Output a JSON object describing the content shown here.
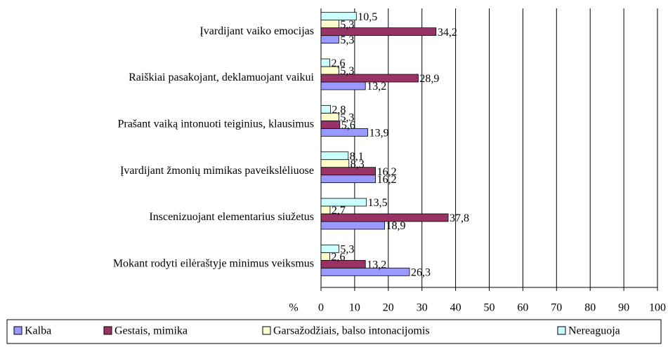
{
  "chart_data": {
    "type": "bar",
    "categories": [
      "Įvardijant vaiko emocijas",
      "Raiškiai pasakojant, deklamuojant vaikui",
      "Prašant vaiką  intonuoti teiginius, klausimus",
      "Įvardijant žmonių mimikas paveikslėliuose",
      "Inscenizuojant elementarius siužetus",
      "Mokant rodyti eilėraštyje minimus veiksmus"
    ],
    "series": [
      {
        "name": "Kalba",
        "color": "#9999ff",
        "values": [
          5.3,
          13.2,
          13.9,
          16.2,
          18.9,
          26.3
        ],
        "value_labels": [
          "5,3",
          "13,2",
          "13,9",
          "16,2",
          "18,9",
          "26,3"
        ]
      },
      {
        "name": "Gestais, mimika",
        "color": "#993366",
        "values": [
          34.2,
          28.9,
          5.6,
          16.2,
          37.8,
          13.2
        ],
        "value_labels": [
          "34,2",
          "28,9",
          "5,6",
          "16,2",
          "37,8",
          "13,2"
        ]
      },
      {
        "name": "Garsažodžiais, balso intonacijomis",
        "color": "#ffffcc",
        "values": [
          5.3,
          5.3,
          5.3,
          8.3,
          2.7,
          2.6
        ],
        "value_labels": [
          "5,3",
          "5,3",
          "5,3",
          "8,3",
          "2,7",
          "2,6"
        ]
      },
      {
        "name": "Nereaguoja",
        "color": "#ccffff",
        "values": [
          10.5,
          2.6,
          2.8,
          8.1,
          13.5,
          5.3
        ],
        "value_labels": [
          "10,5",
          "2,6",
          "2,8",
          "8,1",
          "13,5",
          "5,3"
        ]
      }
    ],
    "xlabel": "%",
    "xlim": [
      0,
      100
    ],
    "xticks": [
      0,
      10,
      20,
      30,
      40,
      50,
      60,
      70,
      80,
      90,
      100
    ],
    "grid": true,
    "legend": "bottom"
  }
}
